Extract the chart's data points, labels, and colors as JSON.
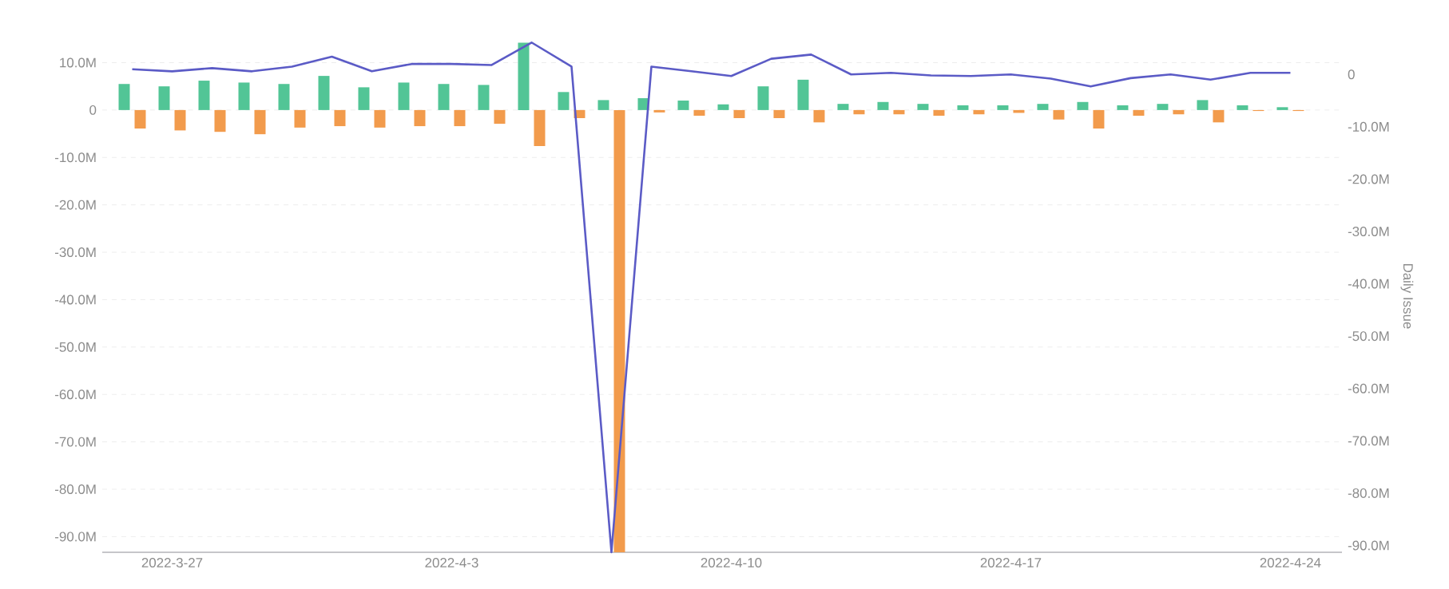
{
  "chart_data": {
    "type": "bar",
    "y2label": "Daily Issue",
    "x": [
      "2022-03-26",
      "2022-03-27",
      "2022-03-28",
      "2022-03-29",
      "2022-03-30",
      "2022-03-31",
      "2022-04-01",
      "2022-04-02",
      "2022-04-03",
      "2022-04-04",
      "2022-04-05",
      "2022-04-06",
      "2022-04-07",
      "2022-04-08",
      "2022-04-09",
      "2022-04-10",
      "2022-04-11",
      "2022-04-12",
      "2022-04-13",
      "2022-04-14",
      "2022-04-15",
      "2022-04-16",
      "2022-04-17",
      "2022-04-18",
      "2022-04-19",
      "2022-04-20",
      "2022-04-21",
      "2022-04-22",
      "2022-04-23",
      "2022-04-24"
    ],
    "xlim": [
      "2022-03-25T06:00",
      "2022-04-25T07:00"
    ],
    "xticks": [
      {
        "value": "2022-03-27",
        "label": "2022-3-27"
      },
      {
        "value": "2022-04-03",
        "label": "2022-4-3"
      },
      {
        "value": "2022-04-10",
        "label": "2022-4-10"
      },
      {
        "value": "2022-04-17",
        "label": "2022-4-17"
      },
      {
        "value": "2022-04-24",
        "label": "2022-4-24"
      }
    ],
    "ylim": [
      -93.3,
      14.8
    ],
    "yticks": [
      {
        "value": -90,
        "label": "-90.0M"
      },
      {
        "value": -80,
        "label": "-80.0M"
      },
      {
        "value": -70,
        "label": "-70.0M"
      },
      {
        "value": -60,
        "label": "-60.0M"
      },
      {
        "value": -50,
        "label": "-50.0M"
      },
      {
        "value": -40,
        "label": "-40.0M"
      },
      {
        "value": -30,
        "label": "-30.0M"
      },
      {
        "value": -20,
        "label": "-20.0M"
      },
      {
        "value": -10,
        "label": "-10.0M"
      },
      0,
      {
        "value": 10,
        "label": "10.0M"
      }
    ],
    "y2lim": [
      -91.3,
      6.6
    ],
    "y2ticks": [
      {
        "value": -90,
        "label": "-90.0M"
      },
      {
        "value": -80,
        "label": "-80.0M"
      },
      {
        "value": -70,
        "label": "-70.0M"
      },
      {
        "value": -60,
        "label": "-60.0M"
      },
      {
        "value": -50,
        "label": "-50.0M"
      },
      {
        "value": -40,
        "label": "-40.0M"
      },
      {
        "value": -30,
        "label": "-30.0M"
      },
      {
        "value": -20,
        "label": "-20.0M"
      },
      {
        "value": -10,
        "label": "-10.0M"
      },
      0
    ],
    "grid": "y",
    "series": [
      {
        "color": "#52c596",
        "values": [
          5.5,
          5.0,
          6.2,
          5.8,
          5.5,
          7.2,
          4.8,
          5.8,
          5.5,
          5.3,
          14.2,
          3.8,
          2.1,
          2.5,
          2.0,
          1.2,
          5.0,
          6.4,
          1.3,
          1.7,
          1.3,
          1.0,
          1.0,
          1.3,
          1.7,
          1.0,
          1.3,
          2.1,
          1.0,
          0.6
        ]
      },
      {
        "color": "#f29b4c",
        "values": [
          -3.9,
          -4.3,
          -4.6,
          -5.1,
          -3.7,
          -3.4,
          -3.7,
          -3.4,
          -3.4,
          -2.9,
          -7.6,
          -1.7,
          -93.3,
          -0.5,
          -1.2,
          -1.7,
          -1.7,
          -2.6,
          -0.9,
          -0.9,
          -1.2,
          -0.9,
          -0.6,
          -2.0,
          -3.9,
          -1.2,
          -0.9,
          -2.6,
          -0.2,
          -0.2
        ]
      },
      {
        "type": "line",
        "axis": "y2",
        "color": "#5b5bc6",
        "values": [
          1.0,
          0.6,
          1.2,
          0.6,
          1.5,
          3.4,
          0.6,
          2.0,
          2.0,
          1.8,
          6.1,
          1.5,
          -91.3,
          1.5,
          0.6,
          -0.3,
          3.0,
          3.8,
          0.0,
          0.3,
          -0.2,
          -0.3,
          0.0,
          -0.8,
          -2.3,
          -0.7,
          0.0,
          -1.0,
          0.3,
          0.3
        ]
      }
    ]
  }
}
